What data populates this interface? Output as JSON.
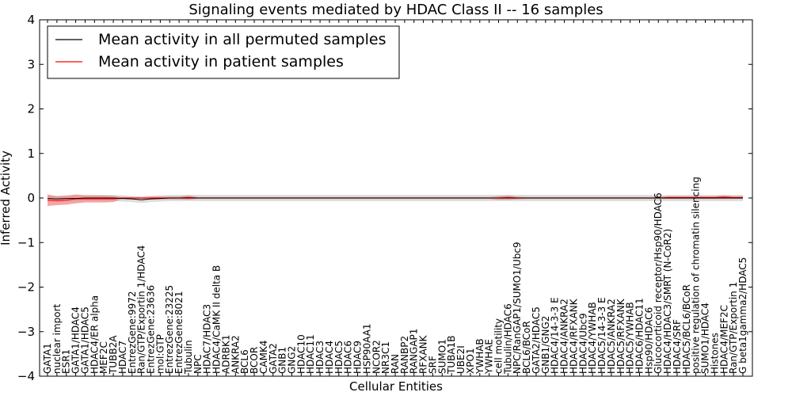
{
  "chart_data": {
    "type": "line",
    "title": "Signaling events mediated by HDAC Class II -- 16 samples",
    "xlabel": "Cellular Entities",
    "ylabel": "Inferred Activity",
    "ylim": [
      -4,
      4
    ],
    "yticks": [
      "4",
      "3",
      "2",
      "1",
      "0",
      "−1",
      "−2",
      "−3",
      "−4"
    ],
    "grid": false,
    "legend_position": "top-left",
    "categories": [
      "GATA1",
      "nuclear import",
      "ESR1",
      "GATA1/HDAC4",
      "GATA1/HDAC5",
      "HDAC4/ER alpha",
      "MEF2C",
      "TUBB2A",
      "HDAC7",
      "EntrezGene:9972",
      "Ran/GTP/Exportin 1/HDAC4",
      "EntrezGene:23636",
      "mol:GTP",
      "EntrezGene:23225",
      "EntrezGene:8021",
      "Tubulin",
      "NPC",
      "HDAC7/HDAC3",
      "HDAC4/CaMK II delta B",
      "ADRBK1",
      "ANKRA2",
      "BCL6",
      "BCOR",
      "CAMK4",
      "GATA2",
      "GNB1",
      "GNG2",
      "HDAC10",
      "HDAC11",
      "HDAC3",
      "HDAC4",
      "HDAC5",
      "HDAC6",
      "HDAC9",
      "HSP90AA1",
      "NCOR2",
      "NR3C1",
      "RAN",
      "RANBP2",
      "RANGAP1",
      "RFXANK",
      "SRF",
      "SUMO1",
      "TUBA1B",
      "UBE2I",
      "XPO1",
      "YWHAB",
      "YWHAE",
      "cell motility",
      "Tubulin/HDAC6",
      "NPC/RanGAP1/SUMO1/Ubc9",
      "BCL6/BCoR",
      "GATA2/HDAC5",
      "GNB1/GNG2",
      "HDAC4/14-3-3 E",
      "HDAC4/ANKRA2",
      "HDAC4/RFXANK",
      "HDAC4/Ubc9",
      "HDAC4/YWHAB",
      "HDAC5/14-3-3 E",
      "HDAC5/ANKRA2",
      "HDAC5/RFXANK",
      "HDAC5/YWHAB",
      "HDAC6/HDAC11",
      "Hsp90/HDAC6",
      "Glucocorticoid receptor/Hsp90/HDAC6",
      "HDAC4/HDAC3/SMRT (N-CoR2)",
      "HDAC4/SRF",
      "HDAC5/BCL6/BCoR",
      "positive regulation of chromatin silencing",
      "SUMO1/HDAC4",
      "Histones",
      "HDAC4/MEF2C",
      "Ran/GTP/Exportin 1",
      "G beta1gamma2/HDAC5"
    ],
    "series": [
      {
        "name": "Mean activity in all permuted samples",
        "color": "#000000",
        "values": [
          -0.01,
          -0.02,
          -0.01,
          -0.01,
          0,
          0,
          0,
          0,
          -0.01,
          -0.02,
          -0.04,
          -0.02,
          -0.01,
          0,
          0,
          0,
          0,
          0,
          0,
          0,
          0,
          0,
          0,
          0,
          0,
          0,
          0,
          0,
          0,
          0,
          0,
          0,
          0,
          0,
          0,
          0,
          0,
          0,
          0,
          0,
          0,
          0,
          0,
          0,
          0,
          0,
          0,
          0,
          0,
          0,
          0,
          0,
          0,
          0,
          0,
          0,
          0,
          0,
          0,
          0,
          0,
          0,
          0,
          0,
          0,
          0,
          0,
          0,
          0,
          0,
          0,
          0,
          0,
          0,
          0
        ],
        "band": [
          0.06,
          0.07,
          0.07,
          0.07,
          0.07,
          0.07,
          0.07,
          0.07,
          0.07,
          0.07,
          0.07,
          0.07,
          0.07,
          0.07,
          0.07,
          0.07,
          0.07,
          0.07,
          0.07,
          0.07,
          0.07,
          0.07,
          0.07,
          0.07,
          0.07,
          0.07,
          0.07,
          0.07,
          0.07,
          0.07,
          0.07,
          0.07,
          0.07,
          0.07,
          0.07,
          0.07,
          0.07,
          0.07,
          0.07,
          0.07,
          0.07,
          0.07,
          0.07,
          0.07,
          0.07,
          0.07,
          0.07,
          0.07,
          0.07,
          0.07,
          0.07,
          0.07,
          0.07,
          0.07,
          0.07,
          0.07,
          0.07,
          0.07,
          0.07,
          0.07,
          0.07,
          0.07,
          0.07,
          0.07,
          0.07,
          0.07,
          0.07,
          0.07,
          0.07,
          0.07,
          0.07,
          0.07,
          0.07,
          0.07,
          0.07
        ],
        "band_color": "#c0c0c0"
      },
      {
        "name": "Mean activity in patient samples",
        "color": "#ff0000",
        "values": [
          -0.05,
          -0.06,
          -0.05,
          -0.02,
          -0.02,
          -0.02,
          -0.02,
          -0.02,
          0,
          0,
          0,
          0,
          0,
          0,
          0,
          0.01,
          0,
          0,
          0,
          0,
          0,
          0,
          0,
          0,
          0,
          0,
          0,
          0,
          0,
          0,
          0,
          0,
          0,
          0,
          0,
          0,
          0,
          0,
          0,
          0,
          0,
          0,
          0,
          0,
          0,
          0,
          0,
          0,
          0,
          0.01,
          0,
          0,
          0,
          0,
          0,
          0,
          0,
          0,
          0,
          0,
          0,
          0,
          0,
          0,
          0,
          0,
          0.01,
          0.01,
          0.01,
          0.01,
          0.01,
          0.01,
          0.02,
          0.01,
          0.01
        ],
        "band": [
          0.13,
          0.1,
          0.1,
          0.1,
          0.08,
          0.08,
          0.08,
          0.07,
          0.02,
          0.02,
          0.02,
          0.03,
          0.03,
          0.03,
          0.03,
          0.05,
          0.02,
          0.02,
          0.02,
          0.02,
          0.02,
          0.02,
          0.02,
          0.02,
          0.02,
          0.02,
          0.02,
          0.02,
          0.02,
          0.02,
          0.02,
          0.02,
          0.02,
          0.02,
          0.02,
          0.02,
          0.02,
          0.02,
          0.02,
          0.02,
          0.02,
          0.02,
          0.02,
          0.02,
          0.02,
          0.02,
          0.02,
          0.02,
          0.04,
          0.05,
          0.03,
          0.02,
          0.02,
          0.02,
          0.02,
          0.02,
          0.02,
          0.02,
          0.02,
          0.02,
          0.02,
          0.02,
          0.02,
          0.02,
          0.02,
          0.02,
          0.03,
          0.03,
          0.03,
          0.03,
          0.03,
          0.03,
          0.04,
          0.03,
          0.03
        ],
        "band_color": "#f08080"
      }
    ]
  }
}
